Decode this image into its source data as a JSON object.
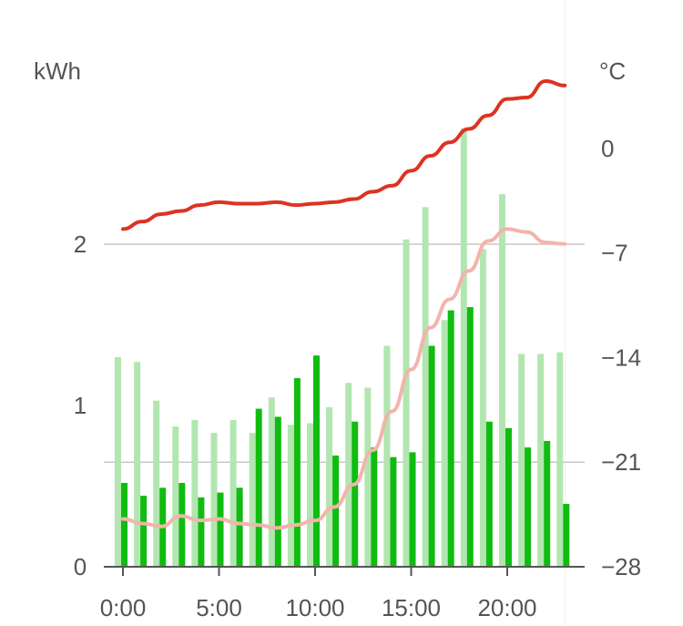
{
  "chart_data": {
    "type": "bar+line",
    "left_unit": "kWh",
    "right_unit": "°C",
    "x_tick_labels": [
      "0:00",
      "5:00",
      "10:00",
      "15:00",
      "20:00"
    ],
    "x_tick_hours": [
      0,
      5,
      10,
      15,
      20
    ],
    "y_left_ticks": [
      {
        "value": 0,
        "label": "0"
      },
      {
        "value": 1,
        "label": "1"
      },
      {
        "value": 2,
        "label": "2"
      }
    ],
    "y_right_ticks": [
      {
        "value": -28,
        "label": "−28"
      },
      {
        "value": -21,
        "label": "−21"
      },
      {
        "value": -14,
        "label": "−14"
      },
      {
        "value": -7,
        "label": "−7"
      },
      {
        "value": 0,
        "label": "0"
      }
    ],
    "y_left_range": [
      0,
      2.78
    ],
    "y_right_range": [
      -28,
      2
    ],
    "gridlines_left": [
      2
    ],
    "gridlines_right": [
      -21
    ],
    "hours": [
      0,
      1,
      2,
      3,
      4,
      5,
      6,
      7,
      8,
      9,
      10,
      11,
      12,
      13,
      14,
      15,
      16,
      17,
      18,
      19,
      20,
      21,
      22,
      23
    ],
    "series": [
      {
        "kind": "bar",
        "color": "#b2e6b0",
        "values": [
          1.3,
          1.27,
          1.03,
          0.87,
          0.91,
          0.83,
          0.91,
          0.83,
          1.05,
          0.88,
          0.89,
          0.99,
          1.14,
          1.11,
          1.37,
          2.03,
          2.23,
          1.53,
          2.72,
          1.97,
          2.31,
          1.32,
          1.32,
          1.33
        ]
      },
      {
        "kind": "bar",
        "color": "#11bb11",
        "values": [
          0.52,
          0.44,
          0.49,
          0.52,
          0.43,
          0.46,
          0.49,
          0.98,
          0.93,
          1.17,
          1.31,
          0.69,
          0.9,
          0.74,
          0.68,
          0.71,
          1.37,
          1.59,
          1.61,
          0.9,
          0.86,
          0.74,
          0.78,
          0.39
        ]
      },
      {
        "kind": "line",
        "axis": "right",
        "color": "#dd3322",
        "values": [
          -5.4,
          -4.9,
          -4.4,
          -4.2,
          -3.8,
          -3.6,
          -3.7,
          -3.7,
          -3.6,
          -3.8,
          -3.7,
          -3.6,
          -3.4,
          -2.9,
          -2.5,
          -1.5,
          -0.5,
          0.4,
          1.3,
          2.2,
          3.3,
          3.4,
          4.5,
          4.2
        ]
      },
      {
        "kind": "line",
        "axis": "right",
        "color": "#f2b4ac",
        "values": [
          -24.8,
          -25.1,
          -25.3,
          -24.6,
          -24.9,
          -24.8,
          -25.1,
          -25.2,
          -25.4,
          -25.2,
          -24.9,
          -24.0,
          -22.5,
          -20.2,
          -17.6,
          -14.8,
          -12.0,
          -10.1,
          -8.2,
          -6.2,
          -5.4,
          -5.6,
          -6.3,
          -6.4
        ]
      }
    ]
  }
}
